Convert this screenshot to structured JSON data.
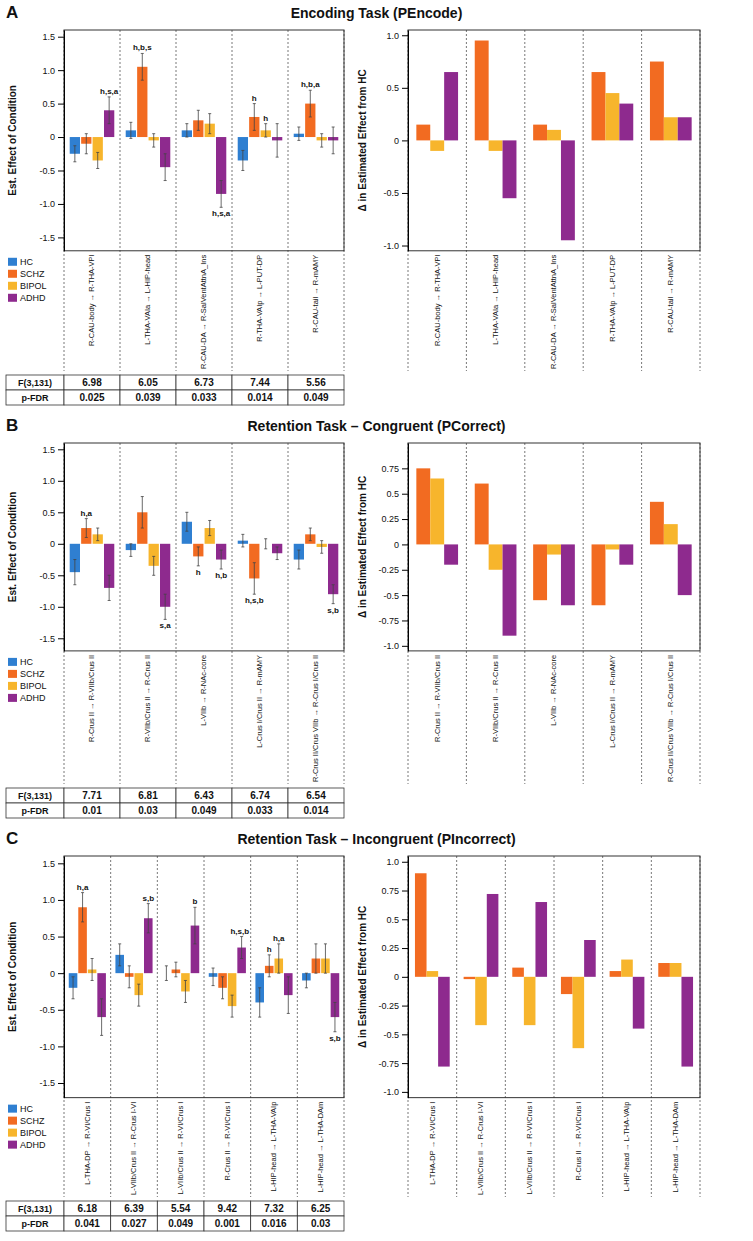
{
  "chart_data": [
    {
      "type": "bar",
      "panel_label": "A",
      "title": "Encoding Task (PEncode)",
      "y_label": "Est. Effect of Condition",
      "categories": [
        "R-CAU-body → R-THA-VPl",
        "L-THA-VAIa → L-HIP-head",
        "R-CAU-DA → R-SalVentAttnA_Ins",
        "R-THA-VAIp → L-PUT-DP",
        "R-CAU-tail → R-mAMY"
      ],
      "series": [
        {
          "name": "HC",
          "color": "#2f7fd1",
          "values": [
            -0.25,
            0.1,
            0.1,
            -0.35,
            0.05
          ],
          "errors": [
            0.12,
            0.12,
            0.1,
            0.15,
            0.1
          ],
          "annotations": [
            null,
            null,
            null,
            null,
            null
          ]
        },
        {
          "name": "SCHZ",
          "color": "#f26b21",
          "values": [
            -0.1,
            1.05,
            0.25,
            0.3,
            0.5
          ],
          "errors": [
            0.15,
            0.2,
            0.15,
            0.2,
            0.2
          ],
          "annotations": [
            null,
            "h,b,s",
            null,
            "h",
            "h,b,a"
          ]
        },
        {
          "name": "BIPOL",
          "color": "#f7b52c",
          "values": [
            -0.35,
            -0.05,
            0.2,
            0.1,
            -0.05
          ],
          "errors": [
            0.12,
            0.1,
            0.15,
            0.1,
            0.1
          ],
          "annotations": [
            null,
            null,
            null,
            "h",
            null
          ]
        },
        {
          "name": "ADHD",
          "color": "#8e2a8e",
          "values": [
            0.4,
            -0.45,
            -0.85,
            -0.05,
            -0.05
          ],
          "errors": [
            0.2,
            0.2,
            0.2,
            0.25,
            0.2
          ],
          "annotations": [
            "h,s,a",
            null,
            "h,s,a",
            null,
            null
          ]
        }
      ],
      "ylim": [
        -1.7,
        1.6
      ],
      "yticks": [
        -1.5,
        {
          "value": -1,
          "label": "-1.0"
        },
        -0.5,
        0,
        0.5,
        {
          "value": 1,
          "label": "1.0"
        },
        1.5
      ],
      "legend": "bottom-left",
      "delta": {
        "type": "bar",
        "y_label": "Δ in Estimated Effect from HC",
        "ylim": [
          -1.05,
          1.05
        ],
        "yticks": [
          {
            "value": -1,
            "label": "-1.0"
          },
          -0.5,
          0,
          0.5,
          {
            "value": 1,
            "label": "1.0"
          }
        ],
        "series": [
          {
            "name": "SCHZ",
            "values": [
              0.15,
              0.95,
              0.15,
              0.65,
              0.75
            ]
          },
          {
            "name": "BIPOL",
            "values": [
              -0.1,
              -0.1,
              0.1,
              0.45,
              0.22
            ]
          },
          {
            "name": "ADHD",
            "values": [
              0.65,
              -0.55,
              -0.95,
              0.35,
              0.22
            ]
          }
        ]
      },
      "table": {
        "row_labels": [
          "F(3,131)",
          "p-FDR"
        ],
        "rows": [
          [
            6.98,
            6.05,
            6.73,
            7.44,
            5.56
          ],
          [
            0.025,
            0.039,
            0.033,
            0.014,
            0.049
          ]
        ]
      }
    },
    {
      "type": "bar",
      "panel_label": "B",
      "title": "Retention Task – Congruent (PCorrect)",
      "y_label": "Est. Effect of Condition",
      "categories": [
        "R-Crus II → R-VIIb/Crus II",
        "R-VIIb/Crus II → R-Crus II",
        "L-VIIb → R-NAc-core",
        "L-Crus I/Crus II → R-mAMY",
        "R-Crus II/Crus VIIb → R-Crus I/Crus II"
      ],
      "series": [
        {
          "name": "HC",
          "color": "#2f7fd1",
          "values": [
            -0.45,
            -0.1,
            0.35,
            0.05,
            -0.25
          ],
          "errors": [
            0.2,
            0.1,
            0.15,
            0.1,
            0.15
          ],
          "annotations": [
            null,
            null,
            null,
            null,
            null
          ]
        },
        {
          "name": "SCHZ",
          "color": "#f26b21",
          "values": [
            0.25,
            0.5,
            -0.2,
            -0.55,
            0.15
          ],
          "errors": [
            0.15,
            0.25,
            0.15,
            0.25,
            0.1
          ],
          "annotations": [
            "h,a",
            null,
            "h",
            "h,s,b",
            null
          ]
        },
        {
          "name": "BIPOL",
          "color": "#f7b52c",
          "values": [
            0.15,
            -0.35,
            0.25,
            0.0,
            -0.05
          ],
          "errors": [
            0.1,
            0.15,
            0.12,
            0.08,
            0.1
          ],
          "annotations": [
            null,
            null,
            null,
            null,
            null
          ]
        },
        {
          "name": "ADHD",
          "color": "#8e2a8e",
          "values": [
            -0.7,
            -1.0,
            -0.25,
            -0.15,
            -0.8
          ],
          "errors": [
            0.2,
            0.2,
            0.15,
            0.1,
            0.15
          ],
          "annotations": [
            null,
            "s,a",
            "h,b",
            null,
            "s,b"
          ]
        }
      ],
      "ylim": [
        -1.7,
        1.6
      ],
      "yticks": [
        -1.5,
        {
          "value": -1,
          "label": "-1.0"
        },
        -0.5,
        0,
        0.5,
        {
          "value": 1,
          "label": "1.0"
        },
        1.5
      ],
      "legend": "bottom-left",
      "delta": {
        "type": "bar",
        "y_label": "Δ in Estimated Effect from HC",
        "ylim": [
          -1.05,
          1.0
        ],
        "yticks": [
          {
            "value": -1,
            "label": "-1.0"
          },
          -0.75,
          -0.5,
          -0.25,
          0,
          0.25,
          0.5,
          0.75
        ],
        "series": [
          {
            "name": "SCHZ",
            "values": [
              0.75,
              0.6,
              -0.55,
              -0.6,
              0.42
            ]
          },
          {
            "name": "BIPOL",
            "values": [
              0.65,
              -0.25,
              -0.1,
              -0.05,
              0.2
            ]
          },
          {
            "name": "ADHD",
            "values": [
              -0.2,
              -0.9,
              -0.6,
              -0.2,
              -0.5
            ]
          }
        ]
      },
      "table": {
        "row_labels": [
          "F(3,131)",
          "p-FDR"
        ],
        "rows": [
          [
            7.71,
            6.81,
            6.43,
            6.74,
            6.54
          ],
          [
            0.01,
            0.03,
            0.049,
            0.033,
            0.014
          ]
        ]
      }
    },
    {
      "type": "bar",
      "panel_label": "C",
      "title": "Retention Task – Incongruent (PIncorrect)",
      "y_label": "Est. Effect of Condition",
      "categories": [
        "L-THA-DP → R-VI/Crus I",
        "L-VIIb/Crus II → R-Crus I-VI",
        "L-VIIb/Crus II → R-VI/Crus I",
        "R-Crus II → R-VI/Crus I",
        "L-HIP-head → L-THA-VAIp",
        "L-HIP-head → L-THA-DAm"
      ],
      "series": [
        {
          "name": "HC",
          "color": "#2f7fd1",
          "values": [
            -0.2,
            0.25,
            0.0,
            -0.05,
            -0.4,
            -0.1
          ],
          "errors": [
            0.15,
            0.15,
            0.1,
            0.12,
            0.2,
            0.1
          ],
          "annotations": [
            null,
            null,
            null,
            null,
            null,
            null
          ]
        },
        {
          "name": "SCHZ",
          "color": "#f26b21",
          "values": [
            0.9,
            -0.05,
            0.05,
            -0.2,
            0.1,
            0.2
          ],
          "errors": [
            0.2,
            0.15,
            0.1,
            0.15,
            0.15,
            0.2
          ],
          "annotations": [
            "h,a",
            null,
            null,
            null,
            "h",
            null
          ]
        },
        {
          "name": "BIPOL",
          "color": "#f7b52c",
          "values": [
            0.05,
            -0.3,
            -0.25,
            -0.45,
            0.2,
            0.2
          ],
          "errors": [
            0.15,
            0.15,
            0.15,
            0.15,
            0.2,
            0.2
          ],
          "annotations": [
            null,
            null,
            null,
            null,
            "h,a",
            null
          ]
        },
        {
          "name": "ADHD",
          "color": "#8e2a8e",
          "values": [
            -0.6,
            0.75,
            0.65,
            0.35,
            -0.3,
            -0.6
          ],
          "errors": [
            0.25,
            0.2,
            0.25,
            0.15,
            0.25,
            0.2
          ],
          "annotations": [
            null,
            "s,b",
            "b",
            "h,s,b",
            null,
            "s,b"
          ]
        }
      ],
      "ylim": [
        -1.7,
        1.6
      ],
      "yticks": [
        -1.5,
        {
          "value": -1,
          "label": "-1.0"
        },
        -0.5,
        0,
        0.5,
        {
          "value": 1,
          "label": "1.0"
        },
        1.5
      ],
      "legend": "bottom-left",
      "delta": {
        "type": "bar",
        "y_label": "Δ in Estimated Effect from HC",
        "ylim": [
          -1.05,
          1.05
        ],
        "yticks": [
          {
            "value": -1,
            "label": "-1.0"
          },
          -0.75,
          -0.5,
          -0.25,
          0,
          0.25,
          0.5,
          0.75,
          {
            "value": 1,
            "label": "1.0"
          }
        ],
        "series": [
          {
            "name": "SCHZ",
            "values": [
              0.9,
              -0.02,
              0.08,
              -0.15,
              0.05,
              0.12
            ]
          },
          {
            "name": "BIPOL",
            "values": [
              0.05,
              -0.42,
              -0.42,
              -0.62,
              0.15,
              0.12
            ]
          },
          {
            "name": "ADHD",
            "values": [
              -0.78,
              0.72,
              0.65,
              0.32,
              -0.45,
              -0.78
            ]
          }
        ]
      },
      "table": {
        "row_labels": [
          "F(3,131)",
          "p-FDR"
        ],
        "rows": [
          [
            6.18,
            6.39,
            5.54,
            9.42,
            7.32,
            6.25
          ],
          [
            0.041,
            0.027,
            0.049,
            0.001,
            0.016,
            0.03
          ]
        ]
      }
    }
  ]
}
